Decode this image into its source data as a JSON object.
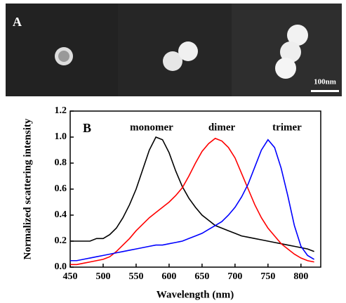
{
  "image_panel": {
    "label": "A",
    "scale_bar": "100nm"
  },
  "chart_data": {
    "type": "line",
    "xlabel": "Wavelength (nm)",
    "ylabel": "Normalized scattering intensity",
    "annotations": [
      "B",
      "monomer",
      "dimer",
      "trimer"
    ],
    "x": [
      450,
      460,
      470,
      480,
      490,
      500,
      510,
      520,
      530,
      540,
      550,
      560,
      570,
      580,
      590,
      600,
      610,
      620,
      630,
      640,
      650,
      660,
      670,
      680,
      690,
      700,
      710,
      720,
      730,
      740,
      750,
      760,
      770,
      780,
      790,
      800,
      810,
      820
    ],
    "series": [
      {
        "color": "#000000",
        "values": [
          0.2,
          0.2,
          0.2,
          0.2,
          0.22,
          0.22,
          0.25,
          0.3,
          0.38,
          0.48,
          0.6,
          0.75,
          0.9,
          1.0,
          0.98,
          0.88,
          0.74,
          0.62,
          0.53,
          0.46,
          0.4,
          0.36,
          0.32,
          0.3,
          0.28,
          0.26,
          0.24,
          0.23,
          0.22,
          0.21,
          0.2,
          0.19,
          0.18,
          0.17,
          0.16,
          0.15,
          0.14,
          0.12
        ]
      },
      {
        "color": "#ff0000",
        "values": [
          0.02,
          0.02,
          0.03,
          0.04,
          0.05,
          0.06,
          0.08,
          0.12,
          0.17,
          0.22,
          0.28,
          0.33,
          0.38,
          0.42,
          0.46,
          0.5,
          0.55,
          0.61,
          0.7,
          0.8,
          0.89,
          0.95,
          0.99,
          0.97,
          0.92,
          0.84,
          0.72,
          0.6,
          0.48,
          0.38,
          0.3,
          0.24,
          0.18,
          0.14,
          0.1,
          0.07,
          0.05,
          0.04
        ]
      },
      {
        "color": "#0000ff",
        "values": [
          0.05,
          0.05,
          0.06,
          0.07,
          0.08,
          0.09,
          0.1,
          0.11,
          0.12,
          0.13,
          0.14,
          0.15,
          0.16,
          0.17,
          0.17,
          0.18,
          0.19,
          0.2,
          0.22,
          0.24,
          0.26,
          0.29,
          0.32,
          0.35,
          0.4,
          0.46,
          0.54,
          0.64,
          0.77,
          0.9,
          0.98,
          0.92,
          0.76,
          0.55,
          0.32,
          0.16,
          0.09,
          0.06
        ]
      }
    ],
    "xlim": [
      450,
      830
    ],
    "xticks": [
      450,
      500,
      550,
      600,
      650,
      700,
      750,
      800
    ],
    "ylim": [
      0,
      1.2
    ],
    "yticks": [
      {
        "value": 0,
        "label": "0.0"
      },
      0.2,
      0.4,
      0.6,
      0.8,
      {
        "value": 1,
        "label": "1.0"
      },
      1.2
    ]
  }
}
